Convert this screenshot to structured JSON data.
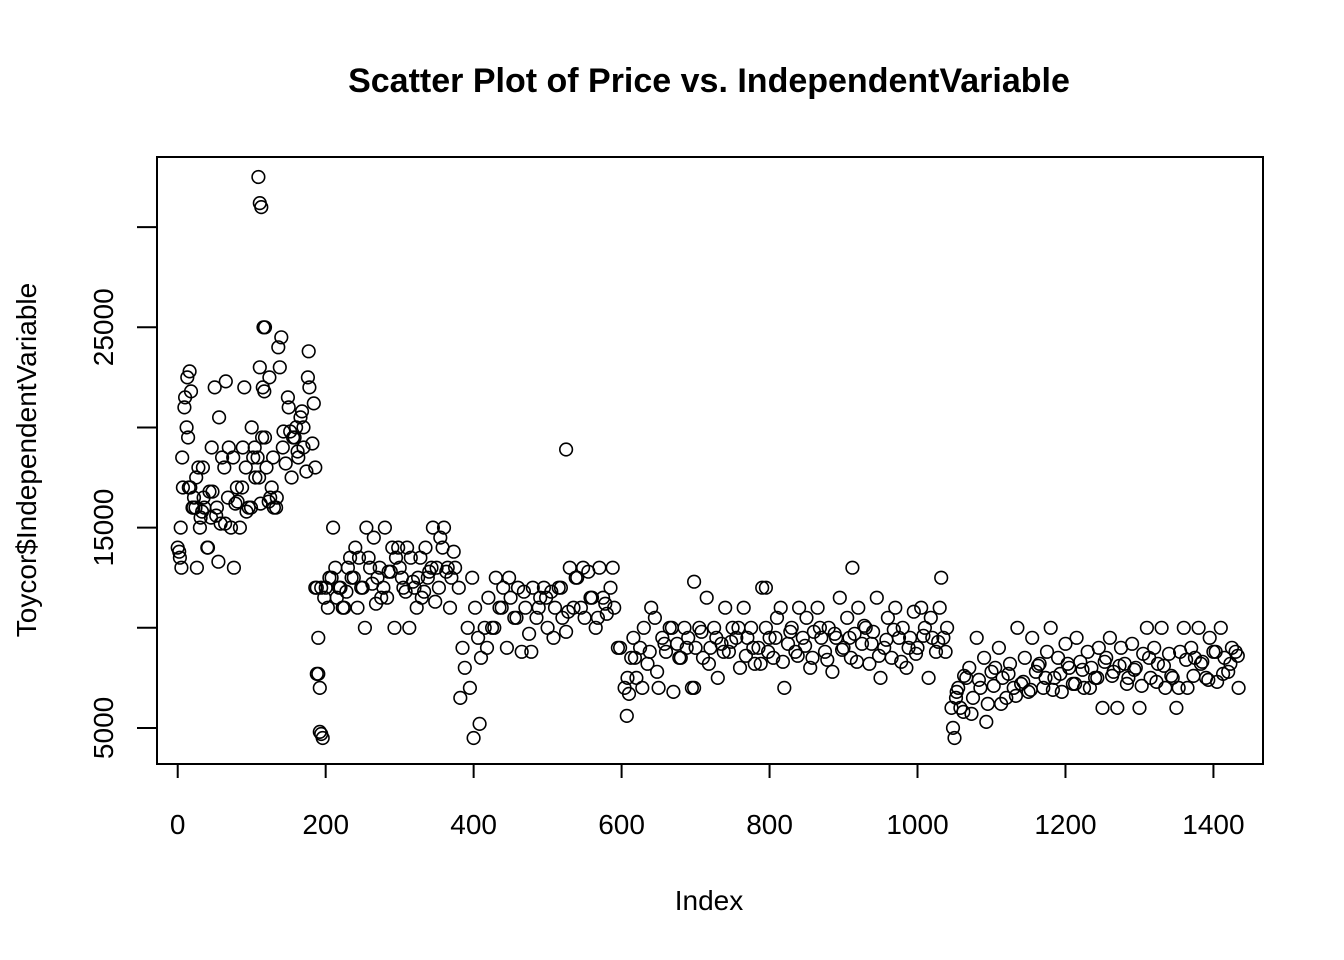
{
  "chart_data": {
    "type": "scatter",
    "title": "Scatter Plot of Price vs. IndependentVariable",
    "xlabel": "Index",
    "ylabel": "Toycor$IndependentVariable",
    "xlim": [
      -28,
      1467
    ],
    "ylim": [
      3200,
      33500
    ],
    "x_ticks": [
      {
        "value": 0,
        "label": "0"
      },
      {
        "value": 200,
        "label": "200"
      },
      {
        "value": 400,
        "label": "400"
      },
      {
        "value": 600,
        "label": "600"
      },
      {
        "value": 800,
        "label": "800"
      },
      {
        "value": 1000,
        "label": "1000"
      },
      {
        "value": 1200,
        "label": "1200"
      },
      {
        "value": 1400,
        "label": "1400"
      }
    ],
    "y_ticks": [
      {
        "value": 5000,
        "label": "5000"
      },
      {
        "value": 10000,
        "label": ""
      },
      {
        "value": 15000,
        "label": "15000"
      },
      {
        "value": 20000,
        "label": ""
      },
      {
        "value": 25000,
        "label": "25000"
      },
      {
        "value": 30000,
        "label": ""
      }
    ],
    "marker": "open-circle",
    "grid": false,
    "legend": "none",
    "series": [
      {
        "x": [
          0,
          3,
          5,
          7,
          10,
          12,
          14,
          16,
          18,
          20,
          22,
          25,
          28,
          30,
          33,
          36,
          40,
          43,
          46,
          50,
          53,
          56,
          60,
          64,
          68,
          72,
          76,
          80,
          84,
          88,
          92,
          96,
          100,
          104,
          108,
          110,
          112,
          115,
          118,
          120,
          124,
          127,
          130,
          134,
          138,
          142,
          146,
          150,
          154,
          158,
          162,
          166,
          170,
          174,
          178,
          182,
          186,
          2,
          6,
          9,
          13,
          17,
          21,
          26,
          31,
          35,
          41,
          47,
          52,
          58,
          63,
          69,
          75,
          81,
          87,
          93,
          99,
          105,
          111,
          117,
          123,
          129,
          136,
          143,
          149,
          156,
          163,
          170,
          177,
          184,
          4,
          15,
          24,
          34,
          45,
          55,
          65,
          78,
          90,
          102,
          114,
          125,
          133,
          140,
          152,
          160,
          168,
          176,
          109,
          111,
          113,
          116,
          118,
          188,
          190,
          192,
          194,
          196,
          200,
          205,
          210,
          215,
          220,
          225,
          230,
          235,
          240,
          245,
          250,
          255,
          260,
          265,
          270,
          275,
          280,
          285,
          290,
          295,
          300,
          305,
          310,
          315,
          320,
          325,
          330,
          335,
          340,
          345,
          350,
          355,
          360,
          365,
          370,
          375,
          380,
          198,
          203,
          208,
          213,
          218,
          223,
          228,
          233,
          238,
          243,
          248,
          253,
          258,
          263,
          268,
          273,
          278,
          283,
          288,
          293,
          298,
          303,
          308,
          313,
          318,
          323,
          328,
          333,
          338,
          343,
          348,
          353,
          358,
          363,
          368,
          373,
          186,
          188,
          190,
          192,
          194,
          382,
          385,
          388,
          392,
          395,
          398,
          402,
          406,
          410,
          415,
          420,
          425,
          430,
          435,
          440,
          445,
          450,
          455,
          460,
          465,
          470,
          475,
          480,
          485,
          490,
          495,
          500,
          505,
          510,
          515,
          520,
          525,
          530,
          535,
          540,
          545,
          550,
          555,
          560,
          565,
          570,
          575,
          580,
          585,
          590,
          595,
          400,
          408,
          418,
          428,
          438,
          448,
          458,
          468,
          478,
          488,
          498,
          508,
          518,
          528,
          538,
          548,
          558,
          568,
          578,
          588,
          598,
          525,
          604,
          607,
          610,
          613,
          616,
          620,
          625,
          630,
          635,
          640,
          645,
          650,
          655,
          660,
          665,
          670,
          675,
          680,
          685,
          690,
          695,
          700,
          705,
          710,
          715,
          720,
          725,
          730,
          735,
          740,
          745,
          750,
          755,
          760,
          765,
          770,
          775,
          780,
          785,
          790,
          795,
          800,
          805,
          810,
          815,
          820,
          825,
          830,
          835,
          840,
          845,
          850,
          855,
          860,
          865,
          870,
          875,
          880,
          885,
          890,
          895,
          900,
          905,
          910,
          915,
          920,
          925,
          930,
          935,
          940,
          945,
          950,
          955,
          960,
          965,
          970,
          975,
          980,
          985,
          990,
          995,
          1000,
          1005,
          1010,
          1015,
          1020,
          1025,
          1030,
          1035,
          1040,
          608,
          618,
          628,
          638,
          648,
          658,
          668,
          678,
          688,
          698,
          708,
          718,
          728,
          738,
          748,
          758,
          768,
          778,
          788,
          798,
          808,
          818,
          828,
          838,
          848,
          858,
          868,
          878,
          888,
          898,
          908,
          918,
          928,
          938,
          948,
          958,
          968,
          978,
          988,
          998,
          1008,
          1018,
          1028,
          1038,
          698,
          795,
          912,
          1032,
          1046,
          1048,
          1050,
          1052,
          1055,
          1058,
          1062,
          1066,
          1070,
          1075,
          1080,
          1085,
          1090,
          1095,
          1100,
          1105,
          1110,
          1115,
          1120,
          1125,
          1130,
          1135,
          1140,
          1145,
          1150,
          1155,
          1160,
          1165,
          1170,
          1175,
          1180,
          1185,
          1190,
          1195,
          1200,
          1205,
          1210,
          1215,
          1220,
          1225,
          1230,
          1235,
          1240,
          1245,
          1250,
          1255,
          1260,
          1265,
          1270,
          1275,
          1280,
          1285,
          1290,
          1295,
          1300,
          1305,
          1310,
          1315,
          1320,
          1325,
          1330,
          1335,
          1340,
          1345,
          1350,
          1355,
          1360,
          1365,
          1370,
          1375,
          1380,
          1385,
          1390,
          1395,
          1400,
          1405,
          1410,
          1415,
          1420,
          1425,
          1430,
          1434,
          1053,
          1063,
          1073,
          1083,
          1093,
          1103,
          1113,
          1123,
          1133,
          1143,
          1153,
          1163,
          1173,
          1183,
          1193,
          1203,
          1213,
          1223,
          1233,
          1243,
          1253,
          1263,
          1273,
          1283,
          1293,
          1303,
          1313,
          1323,
          1333,
          1343,
          1353,
          1363,
          1373,
          1383,
          1393,
          1403,
          1413,
          1423,
          1433
        ],
        "y": [
          14000,
          13500,
          13000,
          17000,
          21500,
          20000,
          19500,
          22800,
          21800,
          16000,
          16500,
          17500,
          18000,
          15000,
          15800,
          16000,
          14000,
          16800,
          19000,
          22000,
          16000,
          20500,
          18500,
          15200,
          16500,
          15000,
          13000,
          17000,
          15000,
          19000,
          18000,
          16000,
          20000,
          19000,
          18500,
          17500,
          16200,
          22000,
          19500,
          18000,
          22500,
          17000,
          16000,
          16500,
          23000,
          19000,
          18200,
          21000,
          17500,
          19500,
          18800,
          20500,
          19000,
          17800,
          22000,
          19200,
          18000,
          13800,
          18500,
          21000,
          22500,
          17000,
          16000,
          13000,
          15500,
          16500,
          14000,
          16800,
          15600,
          15200,
          18000,
          19000,
          18500,
          16300,
          17000,
          15800,
          16000,
          17500,
          23000,
          21800,
          16300,
          18500,
          24000,
          19800,
          21500,
          19500,
          18500,
          20000,
          23800,
          21200,
          15000,
          17000,
          16000,
          18000,
          15500,
          13300,
          22300,
          16200,
          22000,
          18500,
          19500,
          16500,
          16000,
          24500,
          19800,
          20000,
          20800,
          22500,
          32500,
          31200,
          31000,
          25000,
          25000,
          12000,
          9500,
          7000,
          4700,
          4500,
          12000,
          12500,
          15000,
          11500,
          12000,
          11000,
          13000,
          12500,
          14000,
          13500,
          12000,
          15000,
          13000,
          14500,
          12500,
          11500,
          15000,
          12800,
          14000,
          13500,
          13000,
          12000,
          14000,
          13500,
          12000,
          12500,
          11500,
          14000,
          12800,
          15000,
          13000,
          14500,
          15000,
          13000,
          12500,
          13000,
          12000,
          11500,
          11000,
          12500,
          13000,
          12000,
          11000,
          11800,
          13500,
          12500,
          11000,
          12000,
          10000,
          13500,
          12200,
          11200,
          13000,
          12000,
          11500,
          12800,
          10000,
          14000,
          12500,
          11800,
          10000,
          12300,
          11000,
          13500,
          11800,
          12500,
          13000,
          11300,
          12000,
          14000,
          12800,
          11000,
          13800,
          12000,
          7700,
          7700,
          4800,
          12000,
          6500,
          9000,
          8000,
          10000,
          7000,
          12500,
          11000,
          9500,
          8500,
          10000,
          11500,
          10000,
          12500,
          11000,
          12000,
          9000,
          11500,
          10500,
          12000,
          8800,
          11000,
          9700,
          12000,
          10500,
          11500,
          12000,
          10000,
          11800,
          11000,
          12000,
          10500,
          9800,
          13000,
          11000,
          12500,
          11000,
          10500,
          12800,
          11500,
          10000,
          13000,
          11500,
          10700,
          12000,
          11000,
          9000,
          4500,
          5200,
          9000,
          10000,
          11000,
          12500,
          10500,
          11800,
          8800,
          11000,
          11500,
          9500,
          12000,
          10800,
          12500,
          13000,
          11500,
          10500,
          11200,
          13000,
          9000,
          18900,
          7000,
          5600,
          6700,
          8500,
          9500,
          7500,
          9000,
          10000,
          8200,
          11000,
          10500,
          7000,
          9500,
          8800,
          10000,
          6800,
          9200,
          8500,
          10000,
          9500,
          7000,
          9000,
          10000,
          8500,
          11500,
          9000,
          10000,
          7500,
          9200,
          11000,
          8800,
          10000,
          9500,
          8000,
          11000,
          9500,
          10000,
          8200,
          9000,
          12000,
          10000,
          9500,
          8500,
          10500,
          11000,
          7000,
          9200,
          10000,
          8800,
          11000,
          9500,
          10500,
          8000,
          9800,
          11000,
          9500,
          8800,
          10000,
          7800,
          9500,
          11500,
          9000,
          10500,
          8500,
          9700,
          11000,
          9200,
          10000,
          8200,
          9800,
          11500,
          7500,
          9000,
          10500,
          8500,
          11000,
          9500,
          10000,
          8000,
          9500,
          10800,
          9000,
          11000,
          10000,
          7500,
          9500,
          8800,
          11000,
          9500,
          10000,
          7500,
          8500,
          7000,
          8800,
          7800,
          9200,
          10000,
          8500,
          9000,
          7000,
          9800,
          8200,
          9500,
          8800,
          9300,
          10000,
          8600,
          9000,
          8200,
          8800,
          9500,
          8300,
          9800,
          8600,
          9100,
          8500,
          10000,
          8400,
          9700,
          8900,
          9500,
          8300,
          10100,
          9200,
          8600,
          9400,
          9900,
          8300,
          9000,
          8700,
          9600,
          10500,
          9300,
          8800,
          12300,
          12000,
          13000,
          12500,
          6000,
          5000,
          4500,
          6500,
          7000,
          6000,
          5800,
          7500,
          8000,
          6500,
          9500,
          7000,
          8500,
          6200,
          7800,
          8000,
          9000,
          7500,
          6500,
          8200,
          7000,
          10000,
          7200,
          8500,
          6800,
          9500,
          7800,
          8200,
          7000,
          8800,
          10000,
          7500,
          8500,
          6800,
          9200,
          8000,
          7200,
          9500,
          8300,
          7000,
          8800,
          8000,
          7500,
          9000,
          6000,
          8500,
          9500,
          7800,
          6000,
          9000,
          8200,
          7500,
          9200,
          8000,
          6000,
          8700,
          10000,
          7500,
          9000,
          8200,
          10000,
          7000,
          8700,
          7500,
          6000,
          8800,
          10000,
          7000,
          9000,
          8500,
          10000,
          8300,
          7500,
          9500,
          8800,
          7300,
          10000,
          8500,
          7800,
          9000,
          8800,
          7000,
          6800,
          7600,
          5700,
          7400,
          5300,
          7100,
          6200,
          7700,
          6600,
          7300,
          6900,
          8100,
          7500,
          6900,
          7700,
          8200,
          7200,
          7900,
          7000,
          7500,
          8300,
          7600,
          8100,
          7200,
          7900,
          7100,
          8500,
          7300,
          8100,
          7600,
          7000,
          8400,
          7600,
          8200,
          7400,
          8800,
          7700,
          8200,
          8600
        ]
      }
    ]
  }
}
